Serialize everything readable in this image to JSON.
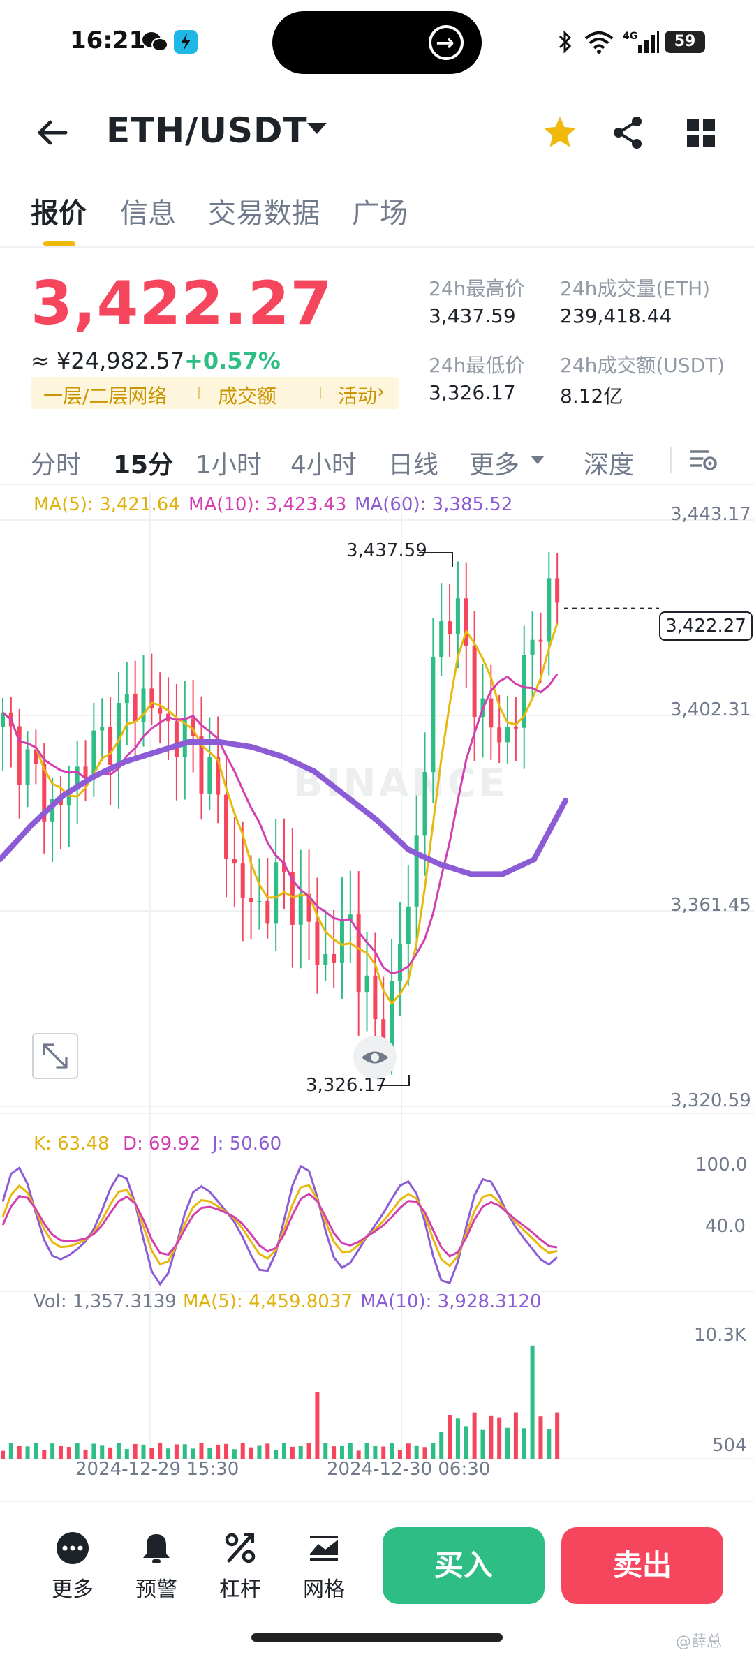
{
  "status_bar": {
    "time": "16:21",
    "battery": "59",
    "network": "4G"
  },
  "header": {
    "pair": "ETH/USDT",
    "icons": [
      "back-arrow-icon",
      "star-icon",
      "share-icon",
      "grid-icon"
    ]
  },
  "tabs": [
    "报价",
    "信息",
    "交易数据",
    "广场"
  ],
  "price": {
    "last": "3,422.27",
    "cny": "≈ ¥24,982.57",
    "change": "+0.57%",
    "tags": [
      "一层/二层网络",
      "成交额",
      "活动"
    ]
  },
  "stats": {
    "high_label": "24h最高价",
    "high": "3,437.59",
    "low_label": "24h最低价",
    "low": "3,326.17",
    "vol_eth_label": "24h成交量(ETH)",
    "vol_eth": "239,418.44",
    "vol_usdt_label": "24h成交额(USDT)",
    "vol_usdt": "8.12亿"
  },
  "intervals": [
    "分时",
    "15分",
    "1小时",
    "4小时",
    "日线",
    "更多",
    "深度"
  ],
  "active_interval": "15分",
  "ma_legend": {
    "ma5": "MA(5): 3,421.64",
    "ma10": "MA(10): 3,423.43",
    "ma60": "MA(60): 3,385.52"
  },
  "price_axis": [
    "3,443.17",
    "3,402.31",
    "3,361.45",
    "3,320.59"
  ],
  "current_price_tag": "3,422.27",
  "high_marker": "3,437.59",
  "low_marker": "3,326.17",
  "kdj_legend": {
    "k": "K: 63.48",
    "d": "D: 69.92",
    "j": "J: 50.60"
  },
  "kdj_axis": [
    "100.0",
    "40.0"
  ],
  "vol_legend": {
    "vol": "Vol: 1,357.3139",
    "ma5": "MA(5): 4,459.8037",
    "ma10": "MA(10): 3,928.3120"
  },
  "vol_axis": [
    "10.3K",
    "504"
  ],
  "dates": [
    "2024-12-29 15:30",
    "2024-12-30 06:30"
  ],
  "watermark": "BINANCE",
  "bottom_nav": [
    "更多",
    "预警",
    "杠杆",
    "网格"
  ],
  "buy_label": "买入",
  "sell_label": "卖出",
  "corner_text": "@薛总",
  "colors": {
    "up": "#2ebd85",
    "down": "#f6465d",
    "ma5": "#e8b90d",
    "ma10": "#d23fb0",
    "ma60": "#8b5cd6",
    "accent": "#f0b90b"
  },
  "chart_data": {
    "type": "candlestick",
    "interval": "15m",
    "price_range": [
      3320.59,
      3443.17
    ],
    "high": 3437.59,
    "low": 3326.17,
    "last": 3422.27,
    "close_trend": [
      3398,
      3394,
      3389,
      3384,
      3380,
      3387,
      3392,
      3395,
      3398,
      3402,
      3405,
      3401,
      3398,
      3396,
      3393,
      3388,
      3376,
      3366,
      3360,
      3363,
      3367,
      3364,
      3357,
      3350,
      3352,
      3360,
      3345,
      3335,
      3342,
      3358,
      3378,
      3408,
      3425,
      3418,
      3406,
      3398,
      3395,
      3401,
      3413,
      3424,
      3422
    ],
    "ma60_trend": [
      3371,
      3378,
      3384,
      3388,
      3391,
      3393,
      3395,
      3395,
      3394,
      3392,
      3389,
      3384,
      3379,
      3373,
      3370,
      3368,
      3368,
      3371,
      3383
    ],
    "kdj_range": [
      0,
      100
    ],
    "volume_range": [
      504,
      10300
    ]
  }
}
